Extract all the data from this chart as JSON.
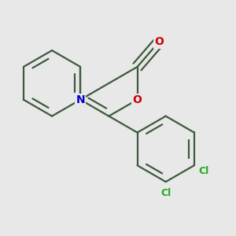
{
  "background_color": "#e8e8e8",
  "bond_color": "#3d5a3d",
  "bond_width": 1.6,
  "atom_colors": {
    "N": "#0000cc",
    "O": "#cc0000",
    "Cl": "#22aa22",
    "C": "#3d5a3d"
  },
  "font_size_atom": 10,
  "font_size_cl": 9
}
